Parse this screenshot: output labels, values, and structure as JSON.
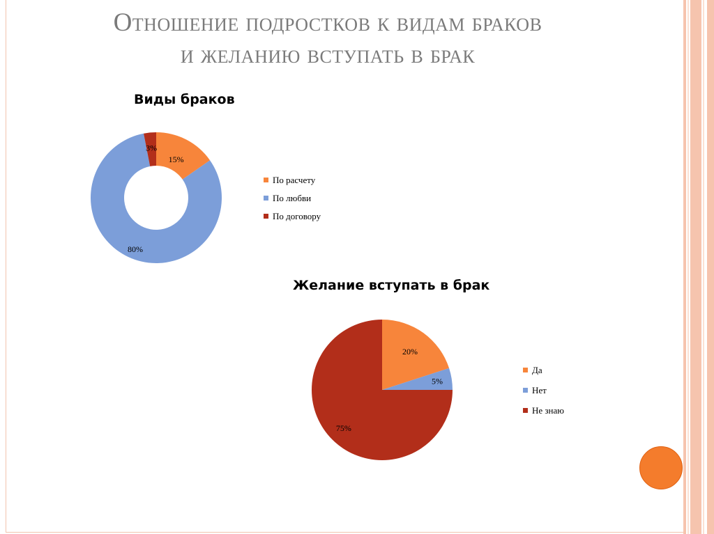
{
  "slide": {
    "title_line1": "Отношение подростков к видам браков",
    "title_line2": "и желанию вступать в брак"
  },
  "colors": {
    "orange": "#f7853b",
    "blue": "#7c9ed9",
    "red": "#b22e1a",
    "accent": "#f47c2c",
    "stripes": [
      "#f6c4ae",
      "#fbe1d4",
      "#f6c4ae",
      "#fbe1d4",
      "#f6c4ae"
    ]
  },
  "chart_data": [
    {
      "type": "donut",
      "title": "Виды браков",
      "categories": [
        "По расчету",
        "По любви",
        "По договору"
      ],
      "values": [
        15,
        80,
        3
      ],
      "labels": [
        "15%",
        "80%",
        "3%"
      ],
      "legend": "right"
    },
    {
      "type": "pie",
      "title": "Желание вступать в брак",
      "categories": [
        "Да",
        "Нет",
        "Не знаю"
      ],
      "values": [
        20,
        5,
        75
      ],
      "labels": [
        "20%",
        "5%",
        "75%"
      ],
      "legend": "right"
    }
  ]
}
